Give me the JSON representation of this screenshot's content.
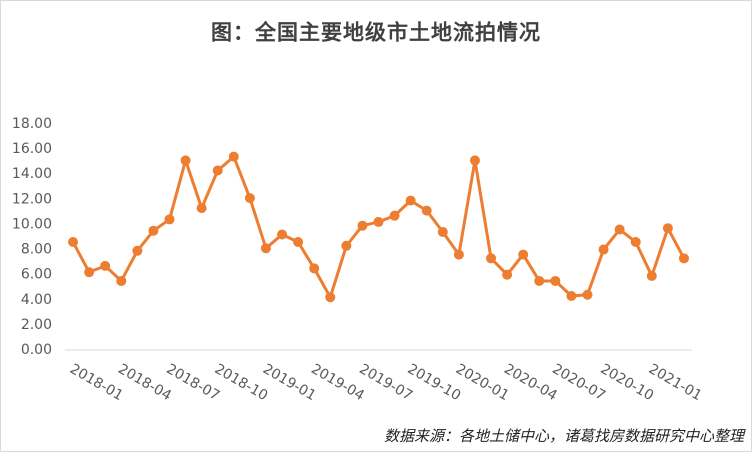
{
  "chart_data": {
    "type": "line",
    "title": "图：全国主要地级市土地流拍情况",
    "source": "数据来源：各地土储中心，诸葛找房数据研究中心整理",
    "categories": [
      "2018-01",
      null,
      null,
      "2018-04",
      null,
      null,
      "2018-07",
      null,
      null,
      "2018-10",
      null,
      null,
      "2019-01",
      null,
      null,
      "2019-04",
      null,
      null,
      "2019-07",
      null,
      null,
      "2019-10",
      null,
      null,
      "2020-01",
      null,
      null,
      "2020-04",
      null,
      null,
      "2020-07",
      null,
      null,
      "2020-10",
      null,
      null,
      "2021-01",
      null,
      null
    ],
    "series": [
      {
        "color": "#ed7d31",
        "values": [
          8.6,
          6.2,
          6.7,
          5.5,
          7.9,
          9.5,
          10.4,
          15.1,
          11.3,
          14.3,
          15.4,
          12.1,
          8.1,
          9.2,
          8.6,
          6.5,
          4.2,
          8.3,
          9.9,
          10.2,
          10.7,
          11.9,
          11.1,
          9.4,
          7.6,
          15.1,
          7.3,
          6.0,
          7.6,
          5.5,
          5.5,
          4.3,
          4.4,
          8.0,
          9.6,
          8.6,
          5.9,
          9.7,
          7.3
        ]
      }
    ],
    "ylim": [
      0,
      18
    ],
    "yticks": [
      {
        "value": 0,
        "label": "0.00"
      },
      {
        "value": 2,
        "label": "2.00"
      },
      {
        "value": 4,
        "label": "4.00"
      },
      {
        "value": 6,
        "label": "6.00"
      },
      {
        "value": 8,
        "label": "8.00"
      },
      {
        "value": 10,
        "label": "10.00"
      },
      {
        "value": 12,
        "label": "12.00"
      },
      {
        "value": 14,
        "label": "14.00"
      },
      {
        "value": 16,
        "label": "16.00"
      },
      {
        "value": 18,
        "label": "18.00"
      }
    ],
    "grid": false
  }
}
